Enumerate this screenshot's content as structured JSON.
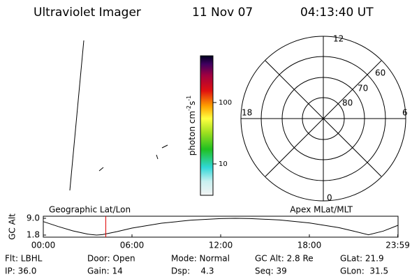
{
  "header": {
    "title": "Ultraviolet Imager",
    "date": "11 Nov 07",
    "time": "04:13:40 UT"
  },
  "colorbar": {
    "label": "photon cm",
    "exp1": "-2",
    "unit2": "s",
    "exp2": "-1",
    "ticks": [
      "100",
      "10"
    ]
  },
  "polar": {
    "mlt_labels": [
      "12",
      "18",
      "6",
      "0"
    ],
    "lat_labels": [
      "60",
      "70",
      "80"
    ]
  },
  "chart_data": {
    "type": "line",
    "ylabel": "GC Alt",
    "left_title": "Geographic Lat/Lon",
    "right_title": "Apex MLat/MLT",
    "x": [
      0,
      1,
      2,
      3,
      3.6,
      4,
      5,
      6,
      8,
      10,
      12,
      13,
      14,
      16,
      18,
      20,
      21,
      22,
      23,
      24
    ],
    "series": [
      {
        "color": "#000000",
        "values": [
          7.6,
          5.5,
          3.6,
          2.2,
          1.8,
          2.0,
          3.3,
          4.8,
          6.9,
          8.2,
          8.9,
          9.0,
          8.9,
          8.3,
          7.0,
          5.0,
          3.5,
          1.9,
          3.5,
          6.0
        ]
      }
    ],
    "xlim": [
      0,
      24
    ],
    "ylim": [
      1.8,
      9
    ],
    "xticks": [
      {
        "value": 0,
        "label": "00:00"
      },
      {
        "value": 6,
        "label": "06:00"
      },
      {
        "value": 12,
        "label": "12:00"
      },
      {
        "value": 18,
        "label": "18:00"
      },
      {
        "value": 23.98,
        "label": "23:59"
      }
    ],
    "yticks": [
      {
        "value": 9,
        "label": "9.0"
      },
      1.8
    ],
    "cursor_color": "#e00000"
  },
  "info": [
    [
      "Flt: LBHL",
      "Door: Open",
      "Mode: Normal",
      "GC Alt: 2.8 Re",
      "GLat: 21.9"
    ],
    [
      "IP: 36.0",
      "Gain: 14",
      "Dsp:    4.3",
      "Seq: 39",
      "GLon:  31.5"
    ]
  ]
}
